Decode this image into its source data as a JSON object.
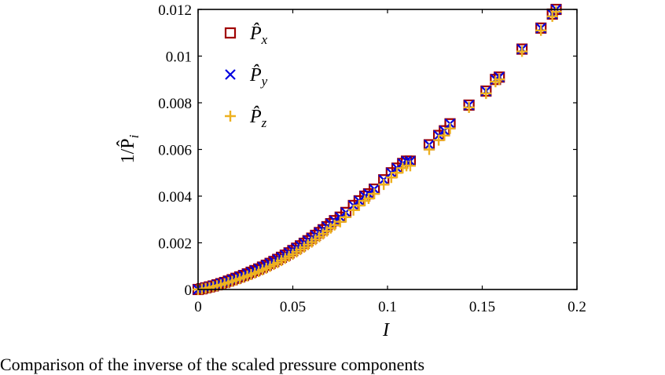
{
  "chart_data": {
    "type": "scatter",
    "xlabel": "I",
    "ylabel": "1/P̂",
    "ylabel_subscript": "i",
    "xlim": [
      0,
      0.2
    ],
    "ylim": [
      0,
      0.012
    ],
    "x_ticks": [
      "0",
      "0.05",
      "0.1",
      "0.15",
      "0.2"
    ],
    "y_ticks": [
      "0",
      "0.002",
      "0.004",
      "0.006",
      "0.008",
      "0.01",
      "0.012"
    ],
    "legend_position": "top-left",
    "grid": false,
    "series": [
      {
        "name": "P̂x",
        "name_subscript": "x",
        "marker": "square",
        "color": "#A00000",
        "x": [
          0.0,
          0.002,
          0.004,
          0.006,
          0.008,
          0.01,
          0.012,
          0.014,
          0.016,
          0.018,
          0.02,
          0.022,
          0.024,
          0.026,
          0.028,
          0.03,
          0.032,
          0.034,
          0.036,
          0.038,
          0.04,
          0.042,
          0.044,
          0.046,
          0.048,
          0.05,
          0.052,
          0.054,
          0.056,
          0.058,
          0.06,
          0.062,
          0.064,
          0.066,
          0.068,
          0.07,
          0.072,
          0.075,
          0.078,
          0.082,
          0.085,
          0.088,
          0.09,
          0.093,
          0.098,
          0.102,
          0.105,
          0.108,
          0.11,
          0.112,
          0.122,
          0.127,
          0.13,
          0.133,
          0.143,
          0.152,
          0.157,
          0.159,
          0.171,
          0.181,
          0.187,
          0.189
        ],
        "y": [
          0.0,
          3e-05,
          7e-05,
          0.00011,
          0.00015,
          0.0002,
          0.00025,
          0.0003,
          0.00036,
          0.00042,
          0.00048,
          0.00054,
          0.0006,
          0.00067,
          0.00074,
          0.00081,
          0.00088,
          0.00096,
          0.00104,
          0.00112,
          0.0012,
          0.00129,
          0.00138,
          0.00147,
          0.00157,
          0.00167,
          0.00177,
          0.00187,
          0.00198,
          0.00209,
          0.0022,
          0.00232,
          0.00244,
          0.00256,
          0.00269,
          0.00282,
          0.00295,
          0.0031,
          0.0033,
          0.0036,
          0.0038,
          0.004,
          0.0041,
          0.0043,
          0.0047,
          0.005,
          0.0052,
          0.0054,
          0.0055,
          0.0055,
          0.0062,
          0.0066,
          0.0068,
          0.0071,
          0.0079,
          0.0085,
          0.009,
          0.0091,
          0.0103,
          0.0112,
          0.0118,
          0.012
        ]
      },
      {
        "name": "P̂y",
        "name_subscript": "y",
        "marker": "x",
        "color": "#0000E0",
        "x": [
          0.0,
          0.002,
          0.004,
          0.006,
          0.008,
          0.01,
          0.012,
          0.014,
          0.016,
          0.018,
          0.02,
          0.022,
          0.024,
          0.026,
          0.028,
          0.03,
          0.032,
          0.034,
          0.036,
          0.038,
          0.04,
          0.042,
          0.044,
          0.046,
          0.048,
          0.05,
          0.052,
          0.054,
          0.056,
          0.058,
          0.06,
          0.062,
          0.064,
          0.066,
          0.068,
          0.07,
          0.072,
          0.075,
          0.078,
          0.082,
          0.085,
          0.088,
          0.09,
          0.093,
          0.098,
          0.102,
          0.105,
          0.108,
          0.11,
          0.112,
          0.122,
          0.127,
          0.13,
          0.133,
          0.143,
          0.152,
          0.157,
          0.159,
          0.171,
          0.181,
          0.187,
          0.189
        ],
        "y": [
          0.0,
          3e-05,
          7e-05,
          0.00011,
          0.00015,
          0.0002,
          0.00025,
          0.0003,
          0.00036,
          0.00042,
          0.00048,
          0.00054,
          0.0006,
          0.00067,
          0.00074,
          0.00081,
          0.00088,
          0.00096,
          0.00104,
          0.00112,
          0.0012,
          0.00129,
          0.00138,
          0.00147,
          0.00157,
          0.00167,
          0.00177,
          0.00187,
          0.00198,
          0.00209,
          0.0022,
          0.00232,
          0.00244,
          0.00256,
          0.00269,
          0.00282,
          0.00295,
          0.0031,
          0.0033,
          0.0036,
          0.0038,
          0.004,
          0.0041,
          0.0043,
          0.0047,
          0.005,
          0.0052,
          0.0054,
          0.0055,
          0.0055,
          0.0062,
          0.0066,
          0.0068,
          0.0071,
          0.0079,
          0.0085,
          0.009,
          0.0091,
          0.0103,
          0.0112,
          0.0118,
          0.012
        ]
      },
      {
        "name": "P̂z",
        "name_subscript": "z",
        "marker": "plus",
        "color": "#EDB120",
        "x": [
          0.0,
          0.002,
          0.004,
          0.006,
          0.008,
          0.01,
          0.012,
          0.014,
          0.016,
          0.018,
          0.02,
          0.022,
          0.024,
          0.026,
          0.028,
          0.03,
          0.032,
          0.034,
          0.036,
          0.038,
          0.04,
          0.042,
          0.044,
          0.046,
          0.048,
          0.05,
          0.052,
          0.054,
          0.056,
          0.058,
          0.06,
          0.062,
          0.064,
          0.066,
          0.068,
          0.07,
          0.072,
          0.075,
          0.078,
          0.082,
          0.085,
          0.088,
          0.09,
          0.093,
          0.098,
          0.102,
          0.105,
          0.108,
          0.11,
          0.112,
          0.122,
          0.127,
          0.13,
          0.133,
          0.143,
          0.152,
          0.157,
          0.159,
          0.171,
          0.181,
          0.187,
          0.189
        ],
        "y": [
          0.0,
          2e-05,
          5e-05,
          8e-05,
          0.00012,
          0.00016,
          0.0002,
          0.00025,
          0.0003,
          0.00035,
          0.0004,
          0.00046,
          0.00052,
          0.00058,
          0.00064,
          0.0007,
          0.00077,
          0.00084,
          0.00091,
          0.00099,
          0.00107,
          0.00115,
          0.00124,
          0.00133,
          0.00142,
          0.00151,
          0.00161,
          0.00171,
          0.00181,
          0.00192,
          0.00203,
          0.00214,
          0.00226,
          0.00238,
          0.0025,
          0.00263,
          0.00276,
          0.0029,
          0.0031,
          0.0034,
          0.0036,
          0.0038,
          0.0039,
          0.0041,
          0.0045,
          0.0048,
          0.005,
          0.0052,
          0.0053,
          0.0053,
          0.006,
          0.0064,
          0.0066,
          0.0069,
          0.0078,
          0.0084,
          0.0089,
          0.009,
          0.0102,
          0.0111,
          0.0117,
          0.0119
        ]
      }
    ]
  },
  "caption": "Comparison of the inverse of the scaled pressure components"
}
